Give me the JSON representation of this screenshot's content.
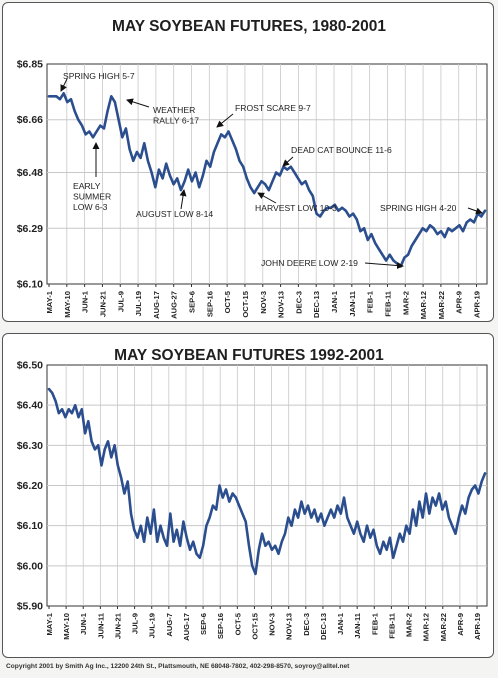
{
  "footer": {
    "copyright": "Copyright 2001 by Smith Ag Inc., 12200 24th St., Plattsmouth, NE 68048-7802, 402-298-8570, soyroy@alltel.net"
  },
  "colors": {
    "line": "#2b4e8f",
    "grid": "#c8c8c8",
    "axis": "#333333"
  },
  "chart_data": [
    {
      "type": "line",
      "title": "MAY SOYBEAN FUTURES, 1980-2001",
      "grid": true,
      "ylim": [
        6.1,
        6.85
      ],
      "yticks": [
        "$6.85",
        "$6.66",
        "$6.48",
        "$6.29",
        "$6.10"
      ],
      "ytick_values": [
        6.85,
        6.66,
        6.48,
        6.29,
        6.1
      ],
      "xticks": [
        "MAY-1",
        "MAY-10",
        "JUN-1",
        "JUN-21",
        "JUL-9",
        "JUL-19",
        "AUG-17",
        "AUG-27",
        "SEP-6",
        "SEP-16",
        "OCT-5",
        "OCT-15",
        "NOV-3",
        "NOV-13",
        "DEC-3",
        "DEC-13",
        "JAN-1",
        "JAN-11",
        "FEB-1",
        "FEB-11",
        "MAR-2",
        "MAR-12",
        "MAR-22",
        "APR-9",
        "APR-19"
      ],
      "series": [
        {
          "values": [
            6.74,
            6.74,
            6.74,
            6.73,
            6.75,
            6.72,
            6.73,
            6.69,
            6.66,
            6.64,
            6.61,
            6.62,
            6.6,
            6.62,
            6.64,
            6.63,
            6.69,
            6.74,
            6.72,
            6.66,
            6.6,
            6.63,
            6.56,
            6.52,
            6.55,
            6.53,
            6.58,
            6.52,
            6.48,
            6.43,
            6.49,
            6.46,
            6.51,
            6.47,
            6.44,
            6.46,
            6.42,
            6.45,
            6.49,
            6.45,
            6.48,
            6.43,
            6.47,
            6.52,
            6.5,
            6.55,
            6.58,
            6.61,
            6.6,
            6.62,
            6.59,
            6.56,
            6.52,
            6.5,
            6.46,
            6.43,
            6.41,
            6.43,
            6.45,
            6.44,
            6.42,
            6.45,
            6.48,
            6.47,
            6.5,
            6.49,
            6.5,
            6.48,
            6.46,
            6.44,
            6.45,
            6.42,
            6.4,
            6.34,
            6.33,
            6.35,
            6.36,
            6.36,
            6.37,
            6.35,
            6.36,
            6.35,
            6.33,
            6.34,
            6.32,
            6.28,
            6.29,
            6.25,
            6.27,
            6.24,
            6.22,
            6.2,
            6.18,
            6.2,
            6.18,
            6.17,
            6.16,
            6.19,
            6.2,
            6.23,
            6.25,
            6.27,
            6.29,
            6.28,
            6.3,
            6.29,
            6.27,
            6.28,
            6.26,
            6.29,
            6.28,
            6.29,
            6.3,
            6.28,
            6.31,
            6.32,
            6.31,
            6.34,
            6.33,
            6.35
          ]
        }
      ],
      "annotations": [
        {
          "lines": [
            "SPRING HIGH 5-7"
          ],
          "x": 1,
          "y": 6.75
        },
        {
          "lines": [
            "WEATHER",
            "RALLY 6-17"
          ],
          "x": 17,
          "y": 6.74
        },
        {
          "lines": [
            "EARLY",
            "SUMMER",
            "LOW 6-3"
          ],
          "x": 11,
          "y": 6.6
        },
        {
          "lines": [
            "FROST SCARE 9-7"
          ],
          "x": 48,
          "y": 6.61
        },
        {
          "lines": [
            "DEAD CAT BOUNCE 11-6"
          ],
          "x": 64,
          "y": 6.5
        },
        {
          "lines": [
            "AUGUST LOW 8-14"
          ],
          "x": 36,
          "y": 6.43
        },
        {
          "lines": [
            "HARVEST LOW 10-3"
          ],
          "x": 56,
          "y": 6.41
        },
        {
          "lines": [
            "SPRING HIGH 4-20"
          ],
          "x": 118,
          "y": 6.34
        },
        {
          "lines": [
            "JOHN DEERE LOW 2-19"
          ],
          "x": 96,
          "y": 6.16
        }
      ]
    },
    {
      "type": "line",
      "title": "MAY SOYBEAN FUTURES 1992-2001",
      "grid": true,
      "ylim": [
        5.9,
        6.5
      ],
      "yticks": [
        "$6.50",
        "$6.40",
        "$6.30",
        "$6.20",
        "$6.10",
        "$6.00",
        "$5.90"
      ],
      "ytick_values": [
        6.5,
        6.4,
        6.3,
        6.2,
        6.1,
        6.0,
        5.9
      ],
      "xticks": [
        "MAY-1",
        "MAY-10",
        "JUN-1",
        "JUN-11",
        "JUN-21",
        "JUL-9",
        "JUL-19",
        "AUG-7",
        "AUG-17",
        "SEP-6",
        "SEP-16",
        "OCT-5",
        "OCT-15",
        "NOV-3",
        "NOV-13",
        "DEC-3",
        "DEC-13",
        "JAN-1",
        "JAN-11",
        "FEB-1",
        "FEB-11",
        "MAR-2",
        "MAR-12",
        "MAR-22",
        "APR-9",
        "APR-19"
      ],
      "series": [
        {
          "values": [
            6.44,
            6.43,
            6.41,
            6.38,
            6.39,
            6.37,
            6.39,
            6.38,
            6.4,
            6.37,
            6.39,
            6.33,
            6.36,
            6.31,
            6.29,
            6.3,
            6.25,
            6.29,
            6.31,
            6.27,
            6.3,
            6.25,
            6.22,
            6.18,
            6.21,
            6.13,
            6.09,
            6.07,
            6.1,
            6.06,
            6.12,
            6.08,
            6.14,
            6.06,
            6.1,
            6.07,
            6.05,
            6.13,
            6.06,
            6.09,
            6.05,
            6.11,
            6.07,
            6.04,
            6.06,
            6.03,
            6.02,
            6.05,
            6.1,
            6.12,
            6.15,
            6.14,
            6.2,
            6.17,
            6.19,
            6.16,
            6.18,
            6.17,
            6.15,
            6.13,
            6.11,
            6.05,
            6.0,
            5.98,
            6.04,
            6.08,
            6.05,
            6.06,
            6.04,
            6.05,
            6.03,
            6.06,
            6.08,
            6.12,
            6.1,
            6.14,
            6.12,
            6.16,
            6.13,
            6.15,
            6.12,
            6.14,
            6.11,
            6.13,
            6.1,
            6.12,
            6.14,
            6.12,
            6.15,
            6.13,
            6.17,
            6.12,
            6.1,
            6.08,
            6.11,
            6.08,
            6.06,
            6.1,
            6.07,
            6.09,
            6.05,
            6.03,
            6.06,
            6.04,
            6.07,
            6.02,
            6.05,
            6.08,
            6.06,
            6.1,
            6.08,
            6.14,
            6.1,
            6.16,
            6.12,
            6.18,
            6.13,
            6.17,
            6.15,
            6.18,
            6.14,
            6.16,
            6.12,
            6.1,
            6.08,
            6.12,
            6.15,
            6.13,
            6.17,
            6.19,
            6.2,
            6.18,
            6.21,
            6.23
          ]
        }
      ],
      "annotations": []
    }
  ]
}
